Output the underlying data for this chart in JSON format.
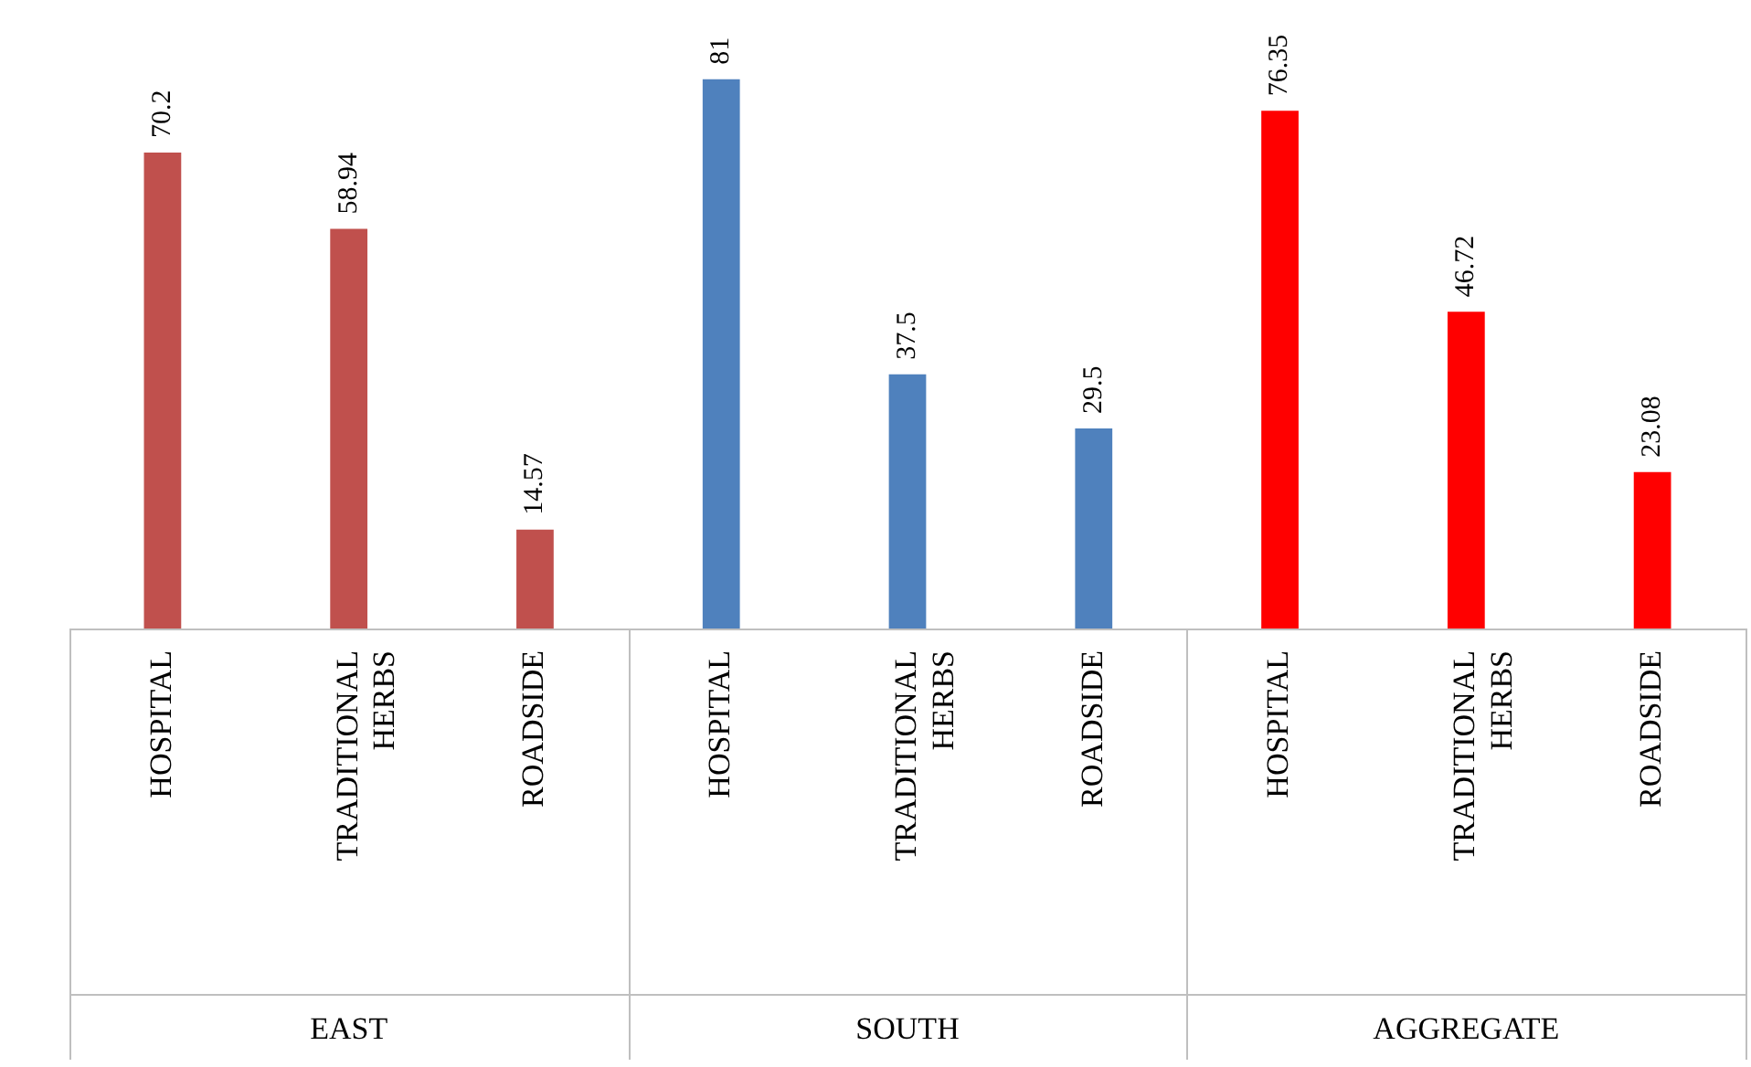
{
  "chart_data": {
    "type": "bar",
    "categories": [
      "HOSPITAL",
      "TRADITIONAL HERBS",
      "ROADSIDE",
      "HOSPITAL",
      "TRADITIONAL HERBS",
      "ROADSIDE",
      "HOSPITAL",
      "TRADITIONAL HERBS",
      "ROADSIDE"
    ],
    "values": [
      70.2,
      58.94,
      14.57,
      81,
      37.5,
      29.5,
      76.35,
      46.72,
      23.08
    ],
    "colors": [
      "#c0504d",
      "#c0504d",
      "#c0504d",
      "#4f81bd",
      "#4f81bd",
      "#4f81bd",
      "#ff0000",
      "#ff0000",
      "#ff0000"
    ],
    "annotations": [
      "EAST",
      "SOUTH",
      "AGGREGATE"
    ],
    "data_labels": true,
    "grid": false,
    "legend": false
  }
}
